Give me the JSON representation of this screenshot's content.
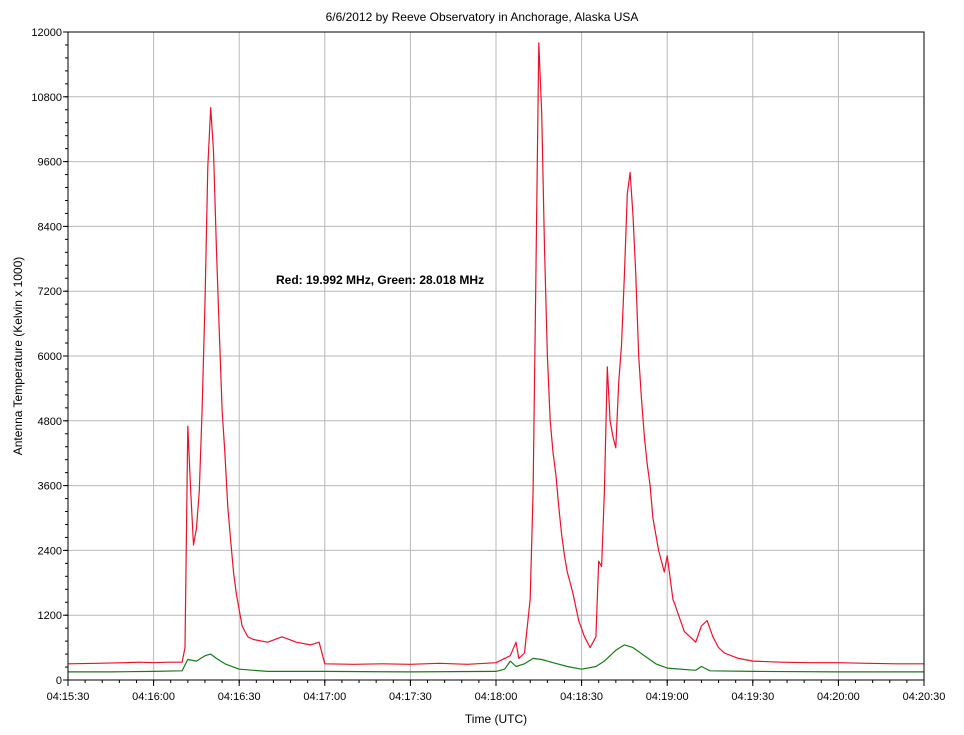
{
  "chart_data": {
    "type": "line",
    "title": "6/6/2012  by  Reeve Observatory  in  Anchorage, Alaska  USA",
    "xlabel": "Time (UTC)",
    "ylabel": "Antenna Temperature (Kelvin x 1000)",
    "annotation": "Red: 19.992 MHz, Green: 28.018 MHz",
    "xlim": [
      "04:15:30",
      "04:20:30"
    ],
    "ylim": [
      0,
      12000
    ],
    "x_ticks": [
      "04:15:30",
      "04:16:00",
      "04:16:30",
      "04:17:00",
      "04:17:30",
      "04:18:00",
      "04:18:30",
      "04:19:00",
      "04:19:30",
      "04:20:00",
      "04:20:30"
    ],
    "y_ticks": [
      "0",
      "1200",
      "2400",
      "3600",
      "4800",
      "6000",
      "7200",
      "8400",
      "9600",
      "10800",
      "12000"
    ],
    "grid": true,
    "series": [
      {
        "name": "Red: 19.992 MHz",
        "color": "#e8112d",
        "points": [
          [
            "04:15:30",
            300
          ],
          [
            "04:15:40",
            310
          ],
          [
            "04:15:50",
            320
          ],
          [
            "04:15:55",
            330
          ],
          [
            "04:16:00",
            320
          ],
          [
            "04:16:05",
            330
          ],
          [
            "04:16:10",
            330
          ],
          [
            "04:16:11",
            600
          ],
          [
            "04:16:12",
            4700
          ],
          [
            "04:16:13",
            3500
          ],
          [
            "04:16:14",
            2500
          ],
          [
            "04:16:15",
            2800
          ],
          [
            "04:16:16",
            3500
          ],
          [
            "04:16:17",
            5000
          ],
          [
            "04:16:18",
            7000
          ],
          [
            "04:16:19",
            9500
          ],
          [
            "04:16:20",
            10600
          ],
          [
            "04:16:21",
            9800
          ],
          [
            "04:16:22",
            8000
          ],
          [
            "04:16:23",
            6500
          ],
          [
            "04:16:24",
            5000
          ],
          [
            "04:16:25",
            4200
          ],
          [
            "04:16:26",
            3200
          ],
          [
            "04:16:27",
            2600
          ],
          [
            "04:16:28",
            2000
          ],
          [
            "04:16:29",
            1600
          ],
          [
            "04:16:30",
            1300
          ],
          [
            "04:16:31",
            1000
          ],
          [
            "04:16:33",
            800
          ],
          [
            "04:16:35",
            750
          ],
          [
            "04:16:40",
            700
          ],
          [
            "04:16:45",
            800
          ],
          [
            "04:16:50",
            700
          ],
          [
            "04:16:55",
            650
          ],
          [
            "04:16:58",
            700
          ],
          [
            "04:17:00",
            300
          ],
          [
            "04:17:10",
            290
          ],
          [
            "04:17:20",
            300
          ],
          [
            "04:17:30",
            290
          ],
          [
            "04:17:40",
            310
          ],
          [
            "04:17:50",
            290
          ],
          [
            "04:18:00",
            320
          ],
          [
            "04:18:05",
            450
          ],
          [
            "04:18:07",
            700
          ],
          [
            "04:18:08",
            400
          ],
          [
            "04:18:10",
            500
          ],
          [
            "04:18:12",
            1500
          ],
          [
            "04:18:13",
            3500
          ],
          [
            "04:18:14",
            7500
          ],
          [
            "04:18:15",
            11800
          ],
          [
            "04:18:16",
            10500
          ],
          [
            "04:18:17",
            8000
          ],
          [
            "04:18:18",
            6000
          ],
          [
            "04:18:19",
            4800
          ],
          [
            "04:18:20",
            4200
          ],
          [
            "04:18:21",
            3800
          ],
          [
            "04:18:22",
            3200
          ],
          [
            "04:18:23",
            2700
          ],
          [
            "04:18:24",
            2300
          ],
          [
            "04:18:25",
            2000
          ],
          [
            "04:18:27",
            1600
          ],
          [
            "04:18:29",
            1100
          ],
          [
            "04:18:31",
            800
          ],
          [
            "04:18:33",
            600
          ],
          [
            "04:18:35",
            800
          ],
          [
            "04:18:36",
            2200
          ],
          [
            "04:18:37",
            2100
          ],
          [
            "04:18:38",
            3500
          ],
          [
            "04:18:39",
            5800
          ],
          [
            "04:18:40",
            4800
          ],
          [
            "04:18:41",
            4500
          ],
          [
            "04:18:42",
            4300
          ],
          [
            "04:18:43",
            5500
          ],
          [
            "04:18:44",
            6200
          ],
          [
            "04:18:45",
            7500
          ],
          [
            "04:18:46",
            9000
          ],
          [
            "04:18:47",
            9400
          ],
          [
            "04:18:48",
            8600
          ],
          [
            "04:18:49",
            7500
          ],
          [
            "04:18:50",
            6000
          ],
          [
            "04:18:51",
            5200
          ],
          [
            "04:18:52",
            4500
          ],
          [
            "04:18:53",
            4000
          ],
          [
            "04:18:54",
            3600
          ],
          [
            "04:18:55",
            3000
          ],
          [
            "04:18:57",
            2400
          ],
          [
            "04:18:59",
            2000
          ],
          [
            "04:19:00",
            2300
          ],
          [
            "04:19:02",
            1500
          ],
          [
            "04:19:04",
            1200
          ],
          [
            "04:19:06",
            900
          ],
          [
            "04:19:08",
            800
          ],
          [
            "04:19:10",
            700
          ],
          [
            "04:19:12",
            1000
          ],
          [
            "04:19:14",
            1100
          ],
          [
            "04:19:16",
            800
          ],
          [
            "04:19:18",
            600
          ],
          [
            "04:19:20",
            500
          ],
          [
            "04:19:25",
            400
          ],
          [
            "04:19:30",
            350
          ],
          [
            "04:19:40",
            330
          ],
          [
            "04:19:50",
            320
          ],
          [
            "04:20:00",
            320
          ],
          [
            "04:20:10",
            310
          ],
          [
            "04:20:20",
            300
          ],
          [
            "04:20:30",
            300
          ]
        ]
      },
      {
        "name": "Green: 28.018 MHz",
        "color": "#1a7a1a",
        "points": [
          [
            "04:15:30",
            150
          ],
          [
            "04:15:45",
            150
          ],
          [
            "04:16:00",
            160
          ],
          [
            "04:16:10",
            170
          ],
          [
            "04:16:12",
            380
          ],
          [
            "04:16:15",
            350
          ],
          [
            "04:16:18",
            450
          ],
          [
            "04:16:20",
            480
          ],
          [
            "04:16:22",
            400
          ],
          [
            "04:16:25",
            300
          ],
          [
            "04:16:30",
            200
          ],
          [
            "04:16:40",
            160
          ],
          [
            "04:17:00",
            160
          ],
          [
            "04:17:30",
            150
          ],
          [
            "04:18:00",
            160
          ],
          [
            "04:18:03",
            200
          ],
          [
            "04:18:05",
            350
          ],
          [
            "04:18:07",
            250
          ],
          [
            "04:18:10",
            300
          ],
          [
            "04:18:13",
            400
          ],
          [
            "04:18:16",
            380
          ],
          [
            "04:18:20",
            320
          ],
          [
            "04:18:25",
            250
          ],
          [
            "04:18:30",
            200
          ],
          [
            "04:18:35",
            250
          ],
          [
            "04:18:38",
            350
          ],
          [
            "04:18:42",
            550
          ],
          [
            "04:18:45",
            650
          ],
          [
            "04:18:48",
            600
          ],
          [
            "04:18:52",
            450
          ],
          [
            "04:18:56",
            300
          ],
          [
            "04:19:00",
            220
          ],
          [
            "04:19:10",
            180
          ],
          [
            "04:19:12",
            250
          ],
          [
            "04:19:15",
            170
          ],
          [
            "04:19:30",
            160
          ],
          [
            "04:20:00",
            150
          ],
          [
            "04:20:30",
            150
          ]
        ]
      }
    ]
  }
}
